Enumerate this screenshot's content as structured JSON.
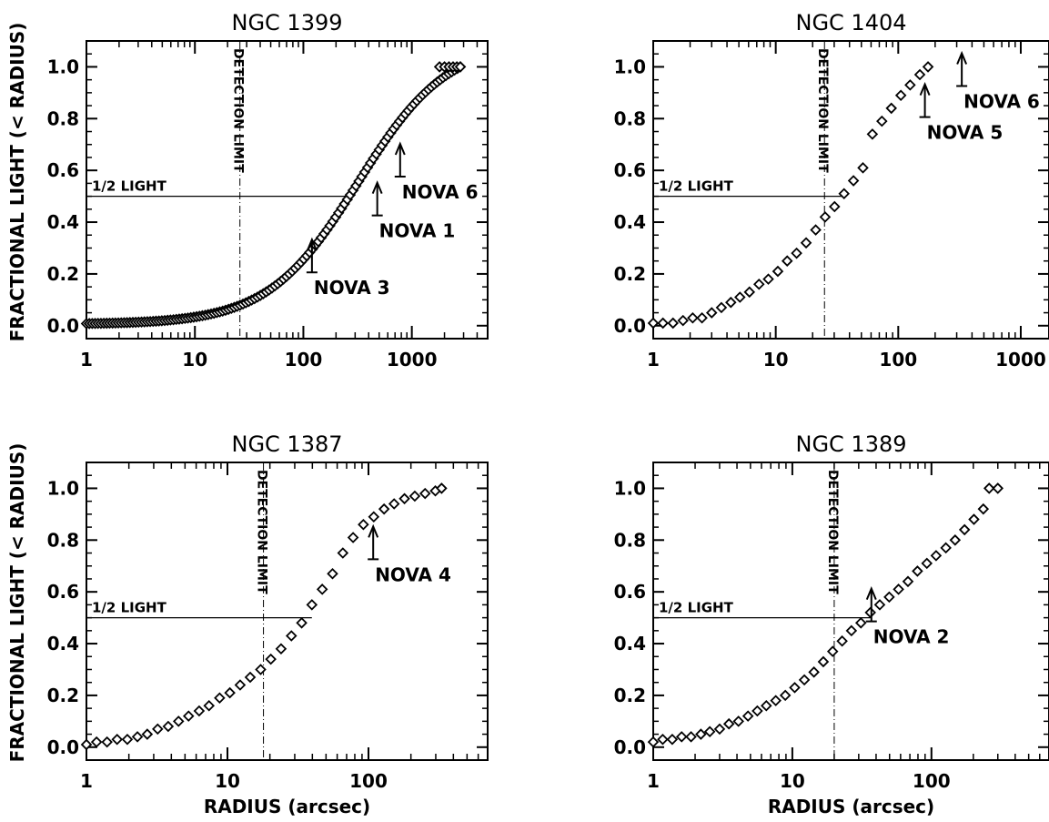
{
  "figure": {
    "ylabel": "FRACTIONAL LIGHT (< RADIUS)",
    "xlabel": "RADIUS (arcsec)"
  },
  "chart_data": [
    {
      "type": "scatter",
      "title": "NGC 1399",
      "xscale": "log",
      "xlim": [
        1,
        5000
      ],
      "ylim": [
        -0.05,
        1.1
      ],
      "xticks": [
        1,
        10,
        100,
        1000
      ],
      "xtick_labels": [
        "1",
        "10",
        "100",
        "1000"
      ],
      "yticks": [
        0.0,
        0.2,
        0.4,
        0.6,
        0.8,
        1.0
      ],
      "ytick_labels": [
        "0.0",
        "0.2",
        "0.4",
        "0.6",
        "0.8",
        "1.0"
      ],
      "half_light": {
        "y": 0.5,
        "label": "1/2 LIGHT"
      },
      "detection_limit": {
        "x": 26,
        "label": "DETECTION LIMIT"
      },
      "marker": "diamond",
      "curve_model": {
        "r_min": 1,
        "r_max": 2800,
        "half_radius": 320,
        "n_points": 130
      },
      "series": [
        {
          "points": [
            [
              1800,
              1.0
            ],
            [
              2000,
              1.0
            ],
            [
              2200,
              1.0
            ],
            [
              2400,
              1.0
            ],
            [
              2600,
              1.0
            ],
            [
              2800,
              1.0
            ]
          ]
        }
      ],
      "annotations": [
        {
          "label": "NOVA 3",
          "x": 120,
          "y": 0.22
        },
        {
          "label": "NOVA 1",
          "x": 480,
          "y": 0.44
        },
        {
          "label": "NOVA 6",
          "x": 780,
          "y": 0.59
        }
      ],
      "show_xlabel": false
    },
    {
      "type": "scatter",
      "title": "NGC 1404",
      "xscale": "log",
      "xlim": [
        1,
        1700
      ],
      "ylim": [
        -0.05,
        1.1
      ],
      "xticks": [
        1,
        10,
        100,
        1000
      ],
      "xtick_labels": [
        "1",
        "10",
        "100",
        "1000"
      ],
      "yticks": [
        0.0,
        0.2,
        0.4,
        0.6,
        0.8,
        1.0
      ],
      "ytick_labels": [
        "0.0",
        "0.2",
        "0.4",
        "0.6",
        "0.8",
        "1.0"
      ],
      "half_light": {
        "y": 0.5,
        "label": "1/2 LIGHT"
      },
      "detection_limit": {
        "x": 25,
        "label": "DETECTION LIMIT"
      },
      "marker": "diamond",
      "series": [
        {
          "points": [
            [
              1.0,
              0.01
            ],
            [
              1.2,
              0.01
            ],
            [
              1.45,
              0.01
            ],
            [
              1.75,
              0.02
            ],
            [
              2.1,
              0.03
            ],
            [
              2.5,
              0.03
            ],
            [
              3.0,
              0.05
            ],
            [
              3.6,
              0.07
            ],
            [
              4.3,
              0.09
            ],
            [
              5.1,
              0.11
            ],
            [
              6.1,
              0.13
            ],
            [
              7.3,
              0.16
            ],
            [
              8.7,
              0.18
            ],
            [
              10.4,
              0.21
            ],
            [
              12.4,
              0.25
            ],
            [
              14.8,
              0.28
            ],
            [
              17.7,
              0.32
            ],
            [
              21.2,
              0.37
            ],
            [
              25.3,
              0.42
            ],
            [
              30.2,
              0.46
            ],
            [
              36.1,
              0.51
            ],
            [
              43.1,
              0.56
            ],
            [
              51.5,
              0.61
            ],
            [
              61.5,
              0.74
            ],
            [
              73.5,
              0.79
            ],
            [
              87.8,
              0.84
            ],
            [
              105,
              0.89
            ],
            [
              125,
              0.93
            ],
            [
              150,
              0.97
            ],
            [
              175,
              1.0
            ]
          ]
        }
      ],
      "annotations": [
        {
          "label": "NOVA 5",
          "x": 165,
          "y": 0.82
        },
        {
          "label": "NOVA 6",
          "x": 330,
          "y": 0.94
        }
      ],
      "show_xlabel": false
    },
    {
      "type": "scatter",
      "title": "NGC 1387",
      "xscale": "log",
      "xlim": [
        1,
        700
      ],
      "ylim": [
        -0.05,
        1.1
      ],
      "xticks": [
        1,
        10,
        100
      ],
      "xtick_labels": [
        "1",
        "10",
        "100"
      ],
      "yticks": [
        0.0,
        0.2,
        0.4,
        0.6,
        0.8,
        1.0
      ],
      "ytick_labels": [
        "0.0",
        "0.2",
        "0.4",
        "0.6",
        "0.8",
        "1.0"
      ],
      "half_light": {
        "y": 0.5,
        "label": "1/2 LIGHT"
      },
      "detection_limit": {
        "x": 18,
        "label": "DETECTION LIMIT"
      },
      "marker": "diamond",
      "series": [
        {
          "points": [
            [
              1.0,
              0.01
            ],
            [
              1.18,
              0.02
            ],
            [
              1.4,
              0.02
            ],
            [
              1.65,
              0.03
            ],
            [
              1.95,
              0.03
            ],
            [
              2.3,
              0.04
            ],
            [
              2.7,
              0.05
            ],
            [
              3.2,
              0.07
            ],
            [
              3.8,
              0.08
            ],
            [
              4.5,
              0.1
            ],
            [
              5.3,
              0.12
            ],
            [
              6.3,
              0.14
            ],
            [
              7.4,
              0.16
            ],
            [
              8.8,
              0.19
            ],
            [
              10.4,
              0.21
            ],
            [
              12.3,
              0.24
            ],
            [
              14.5,
              0.27
            ],
            [
              17.2,
              0.3
            ],
            [
              20.3,
              0.34
            ],
            [
              24,
              0.38
            ],
            [
              28.4,
              0.43
            ],
            [
              33.6,
              0.48
            ],
            [
              39.7,
              0.55
            ],
            [
              47,
              0.61
            ],
            [
              55.6,
              0.67
            ],
            [
              65.8,
              0.75
            ],
            [
              77.8,
              0.81
            ],
            [
              92,
              0.86
            ],
            [
              109,
              0.89
            ],
            [
              129,
              0.92
            ],
            [
              152,
              0.94
            ],
            [
              180,
              0.96
            ],
            [
              213,
              0.97
            ],
            [
              252,
              0.98
            ],
            [
              298,
              0.99
            ],
            [
              330,
              1.0
            ]
          ]
        }
      ],
      "annotations": [
        {
          "label": "NOVA 4",
          "x": 108,
          "y": 0.74
        }
      ],
      "show_xlabel": true
    },
    {
      "type": "scatter",
      "title": "NGC 1389",
      "xscale": "log",
      "xlim": [
        1,
        700
      ],
      "ylim": [
        -0.05,
        1.1
      ],
      "xticks": [
        1,
        10,
        100
      ],
      "xtick_labels": [
        "1",
        "10",
        "100"
      ],
      "yticks": [
        0.0,
        0.2,
        0.4,
        0.6,
        0.8,
        1.0
      ],
      "ytick_labels": [
        "0.0",
        "0.2",
        "0.4",
        "0.6",
        "0.8",
        "1.0"
      ],
      "half_light": {
        "y": 0.5,
        "label": "1/2 LIGHT"
      },
      "detection_limit": {
        "x": 20,
        "label": "DETECTION LIMIT"
      },
      "marker": "diamond",
      "series": [
        {
          "points": [
            [
              1.0,
              0.02
            ],
            [
              1.17,
              0.03
            ],
            [
              1.37,
              0.03
            ],
            [
              1.6,
              0.04
            ],
            [
              1.87,
              0.04
            ],
            [
              2.2,
              0.05
            ],
            [
              2.55,
              0.06
            ],
            [
              3.0,
              0.07
            ],
            [
              3.5,
              0.09
            ],
            [
              4.1,
              0.1
            ],
            [
              4.8,
              0.12
            ],
            [
              5.6,
              0.14
            ],
            [
              6.5,
              0.16
            ],
            [
              7.6,
              0.18
            ],
            [
              8.9,
              0.2
            ],
            [
              10.4,
              0.23
            ],
            [
              12.2,
              0.26
            ],
            [
              14.3,
              0.29
            ],
            [
              16.7,
              0.33
            ],
            [
              19.5,
              0.37
            ],
            [
              22.8,
              0.41
            ],
            [
              26.6,
              0.45
            ],
            [
              31.1,
              0.48
            ],
            [
              36.4,
              0.52
            ],
            [
              42.5,
              0.55
            ],
            [
              49.7,
              0.58
            ],
            [
              58,
              0.61
            ],
            [
              67.8,
              0.64
            ],
            [
              79.3,
              0.68
            ],
            [
              92.7,
              0.71
            ],
            [
              108,
              0.74
            ],
            [
              127,
              0.77
            ],
            [
              148,
              0.8
            ],
            [
              173,
              0.84
            ],
            [
              202,
              0.88
            ],
            [
              236,
              0.92
            ],
            [
              260,
              1.0
            ],
            [
              300,
              1.0
            ]
          ]
        }
      ],
      "annotations": [
        {
          "label": "NOVA 2",
          "x": 37,
          "y": 0.5
        }
      ],
      "show_xlabel": true
    }
  ]
}
